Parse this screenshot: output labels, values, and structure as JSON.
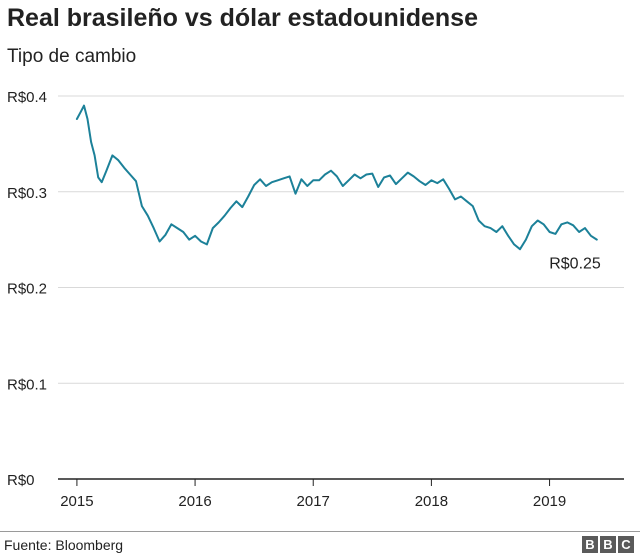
{
  "header": {
    "title": "Real brasileño vs dólar estadounidense",
    "subtitle": "Tipo de cambio"
  },
  "footer": {
    "source": "Fuente: Bloomberg",
    "logo": [
      "B",
      "B",
      "C"
    ]
  },
  "colors": {
    "line": "#1c8199",
    "grid": "#d9d9d9",
    "baseline": "#222222",
    "text": "#222222"
  },
  "chart_data": {
    "type": "line",
    "title": "Real brasileño vs dólar estadounidense",
    "subtitle": "Tipo de cambio",
    "xlabel": "",
    "ylabel": "",
    "y_ticks": [
      {
        "value": 0.4,
        "label": "R$0.4"
      },
      {
        "value": 0.3,
        "label": "R$0.3"
      },
      {
        "value": 0.2,
        "label": "R$0.2"
      },
      {
        "value": 0.1,
        "label": "R$0.1"
      },
      {
        "value": 0.0,
        "label": "R$0"
      }
    ],
    "x_ticks": [
      {
        "value": 2015,
        "label": "2015"
      },
      {
        "value": 2016,
        "label": "2016"
      },
      {
        "value": 2017,
        "label": "2017"
      },
      {
        "value": 2018,
        "label": "2018"
      },
      {
        "value": 2019,
        "label": "2019"
      }
    ],
    "xlim": [
      2014.84,
      2019.63
    ],
    "ylim": [
      0,
      0.4
    ],
    "grid": true,
    "end_label": "R$0.25",
    "series": [
      {
        "x": [
          2015.0,
          2015.03,
          2015.06,
          2015.09,
          2015.12,
          2015.15,
          2015.18,
          2015.21,
          2015.25,
          2015.3,
          2015.35,
          2015.4,
          2015.45,
          2015.5,
          2015.55,
          2015.6,
          2015.65,
          2015.7,
          2015.75,
          2015.8,
          2015.85,
          2015.9,
          2015.95,
          2016.0,
          2016.05,
          2016.1,
          2016.15,
          2016.2,
          2016.25,
          2016.3,
          2016.35,
          2016.4,
          2016.45,
          2016.5,
          2016.55,
          2016.6,
          2016.65,
          2016.7,
          2016.75,
          2016.8,
          2016.85,
          2016.9,
          2016.95,
          2017.0,
          2017.05,
          2017.1,
          2017.15,
          2017.2,
          2017.25,
          2017.3,
          2017.35,
          2017.4,
          2017.45,
          2017.5,
          2017.55,
          2017.6,
          2017.65,
          2017.7,
          2017.75,
          2017.8,
          2017.85,
          2017.9,
          2017.95,
          2018.0,
          2018.05,
          2018.1,
          2018.15,
          2018.2,
          2018.25,
          2018.3,
          2018.35,
          2018.4,
          2018.45,
          2018.5,
          2018.55,
          2018.6,
          2018.65,
          2018.7,
          2018.75,
          2018.8,
          2018.85,
          2018.9,
          2018.95,
          2019.0,
          2019.05,
          2019.1,
          2019.15,
          2019.2,
          2019.25,
          2019.3,
          2019.35,
          2019.4
        ],
        "values": [
          0.376,
          0.383,
          0.39,
          0.376,
          0.352,
          0.338,
          0.315,
          0.31,
          0.322,
          0.338,
          0.333,
          0.325,
          0.318,
          0.311,
          0.285,
          0.275,
          0.262,
          0.248,
          0.255,
          0.266,
          0.262,
          0.258,
          0.25,
          0.254,
          0.248,
          0.245,
          0.262,
          0.268,
          0.275,
          0.283,
          0.29,
          0.284,
          0.295,
          0.307,
          0.313,
          0.306,
          0.31,
          0.312,
          0.314,
          0.316,
          0.298,
          0.313,
          0.306,
          0.312,
          0.312,
          0.318,
          0.322,
          0.316,
          0.306,
          0.312,
          0.318,
          0.314,
          0.318,
          0.319,
          0.305,
          0.315,
          0.317,
          0.308,
          0.314,
          0.32,
          0.316,
          0.311,
          0.307,
          0.312,
          0.309,
          0.313,
          0.303,
          0.292,
          0.295,
          0.29,
          0.285,
          0.27,
          0.264,
          0.262,
          0.258,
          0.264,
          0.254,
          0.245,
          0.24,
          0.25,
          0.264,
          0.27,
          0.266,
          0.258,
          0.256,
          0.266,
          0.268,
          0.265,
          0.258,
          0.262,
          0.254,
          0.25
        ]
      }
    ]
  }
}
